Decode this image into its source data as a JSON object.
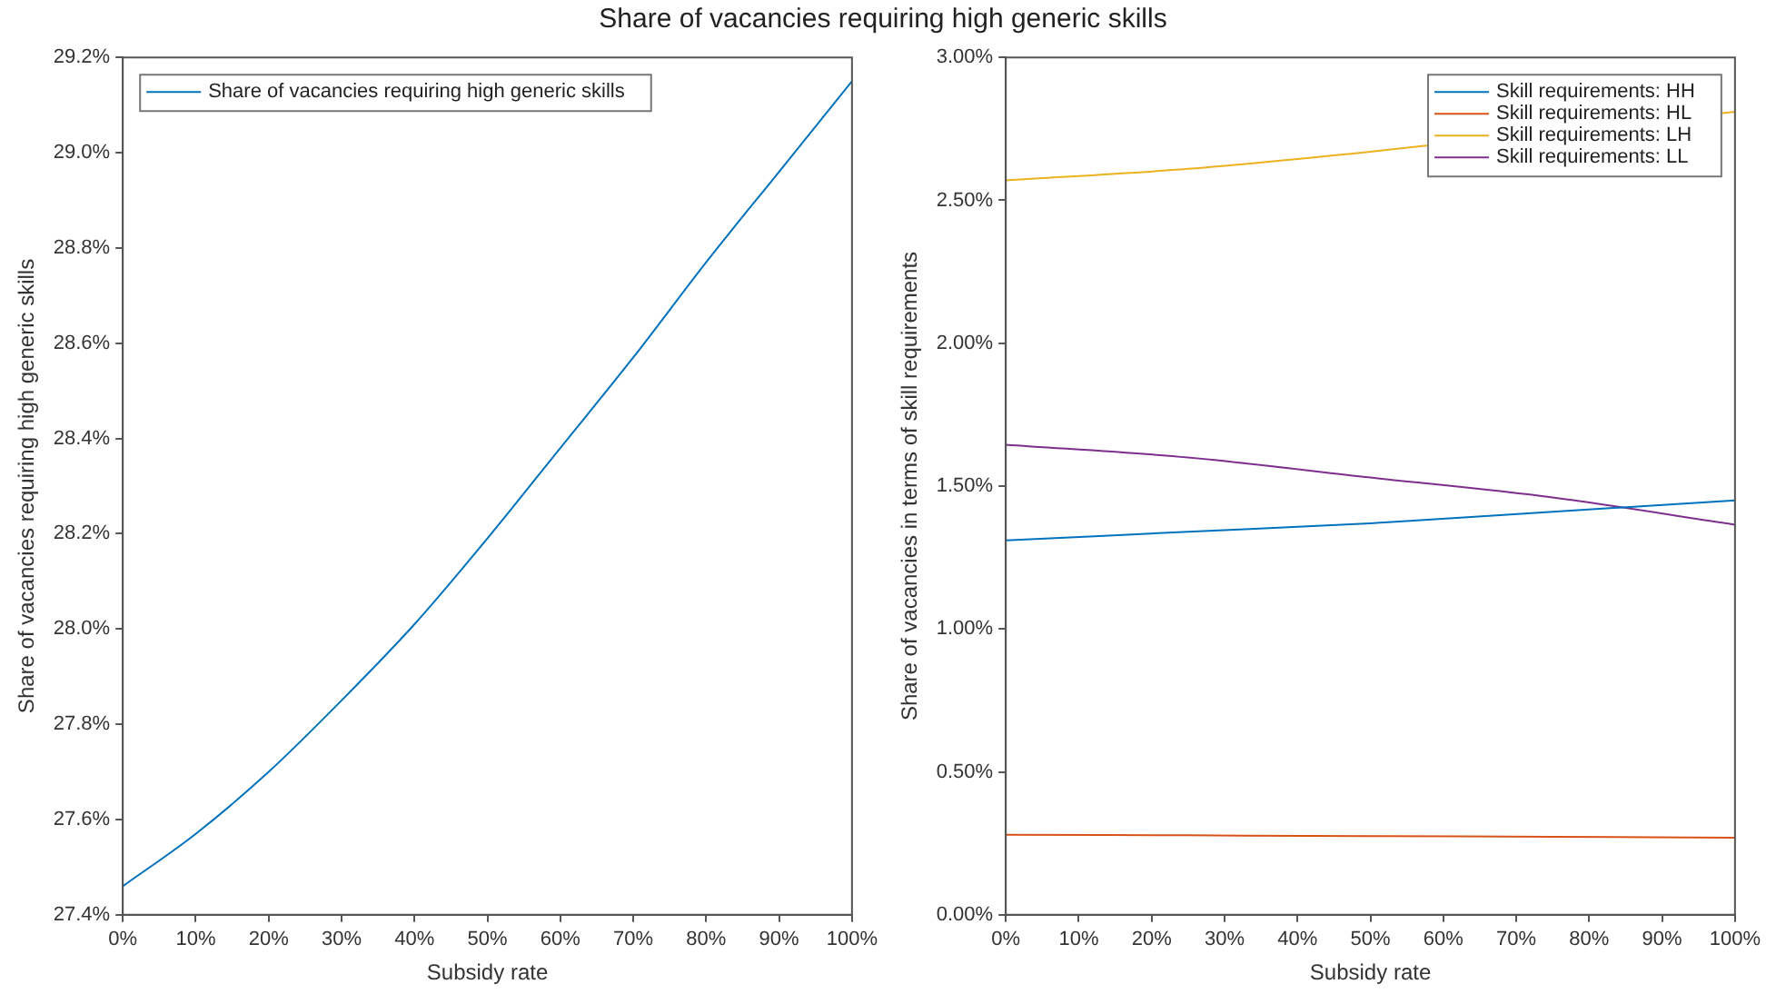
{
  "chart_data": [
    {
      "type": "line",
      "title": "Share of vacancies requiring high generic skills",
      "xlabel": "Subsidy rate",
      "ylabel": "Share of vacancies requiring high generic skills",
      "legend": "top left",
      "x": [
        0,
        10,
        20,
        30,
        40,
        50,
        60,
        70,
        80,
        90,
        100
      ],
      "series": [
        {
          "name": "Share of vacancies requiring high generic skills",
          "color": "#0072bd",
          "values": [
            27.46,
            27.57,
            27.7,
            27.85,
            28.01,
            28.19,
            28.38,
            28.57,
            28.77,
            28.96,
            29.15
          ]
        }
      ],
      "xlim": [
        0,
        100
      ],
      "xticks": [
        {
          "value": 0,
          "label": "0%"
        },
        {
          "value": 10,
          "label": "10%"
        },
        {
          "value": 20,
          "label": "20%"
        },
        {
          "value": 30,
          "label": "30%"
        },
        {
          "value": 40,
          "label": "40%"
        },
        {
          "value": 50,
          "label": "50%"
        },
        {
          "value": 60,
          "label": "60%"
        },
        {
          "value": 70,
          "label": "70%"
        },
        {
          "value": 80,
          "label": "80%"
        },
        {
          "value": 90,
          "label": "90%"
        },
        {
          "value": 100,
          "label": "100%"
        }
      ],
      "ylim": [
        27.4,
        29.2
      ],
      "yticks": [
        {
          "value": 27.4,
          "label": "27.4%"
        },
        {
          "value": 27.6,
          "label": "27.6%"
        },
        {
          "value": 27.8,
          "label": "27.8%"
        },
        {
          "value": 28.0,
          "label": "28.0%"
        },
        {
          "value": 28.2,
          "label": "28.2%"
        },
        {
          "value": 28.4,
          "label": "28.4%"
        },
        {
          "value": 28.6,
          "label": "28.6%"
        },
        {
          "value": 28.8,
          "label": "28.8%"
        },
        {
          "value": 29.0,
          "label": "29.0%"
        },
        {
          "value": 29.2,
          "label": "29.2%"
        }
      ]
    },
    {
      "type": "line",
      "xlabel": "Subsidy rate",
      "ylabel": "Share of vacancies in terms of skill requirements",
      "legend": "top right",
      "x": [
        0,
        25,
        50,
        75,
        100
      ],
      "series": [
        {
          "name": "Skill requirements: HH",
          "color": "#0072bd",
          "values": [
            1.31,
            1.34,
            1.37,
            1.41,
            1.45
          ]
        },
        {
          "name": "Skill requirements: HL",
          "color": "#d95319",
          "values": [
            0.28,
            0.278,
            0.275,
            0.273,
            0.27
          ]
        },
        {
          "name": "Skill requirements: LH",
          "color": "#edb120",
          "x": [
            0,
            25,
            50,
            100
          ],
          "values": [
            2.57,
            2.61,
            2.67,
            2.81
          ]
        },
        {
          "name": "Skill requirements: LL",
          "color": "#7e2f8e",
          "values": [
            1.645,
            1.6,
            1.53,
            1.46,
            1.365
          ]
        }
      ],
      "xlim": [
        0,
        100
      ],
      "xticks": [
        {
          "value": 0,
          "label": "0%"
        },
        {
          "value": 10,
          "label": "10%"
        },
        {
          "value": 20,
          "label": "20%"
        },
        {
          "value": 30,
          "label": "30%"
        },
        {
          "value": 40,
          "label": "40%"
        },
        {
          "value": 50,
          "label": "50%"
        },
        {
          "value": 60,
          "label": "60%"
        },
        {
          "value": 70,
          "label": "70%"
        },
        {
          "value": 80,
          "label": "80%"
        },
        {
          "value": 90,
          "label": "90%"
        },
        {
          "value": 100,
          "label": "100%"
        }
      ],
      "ylim": [
        0,
        3
      ],
      "yticks": [
        {
          "value": 0,
          "label": "0.00%"
        },
        {
          "value": 0.5,
          "label": "0.50%"
        },
        {
          "value": 1,
          "label": "1.00%"
        },
        {
          "value": 1.5,
          "label": "1.50%"
        },
        {
          "value": 2,
          "label": "2.00%"
        },
        {
          "value": 2.5,
          "label": "2.50%"
        },
        {
          "value": 3,
          "label": "3.00%"
        }
      ]
    }
  ]
}
